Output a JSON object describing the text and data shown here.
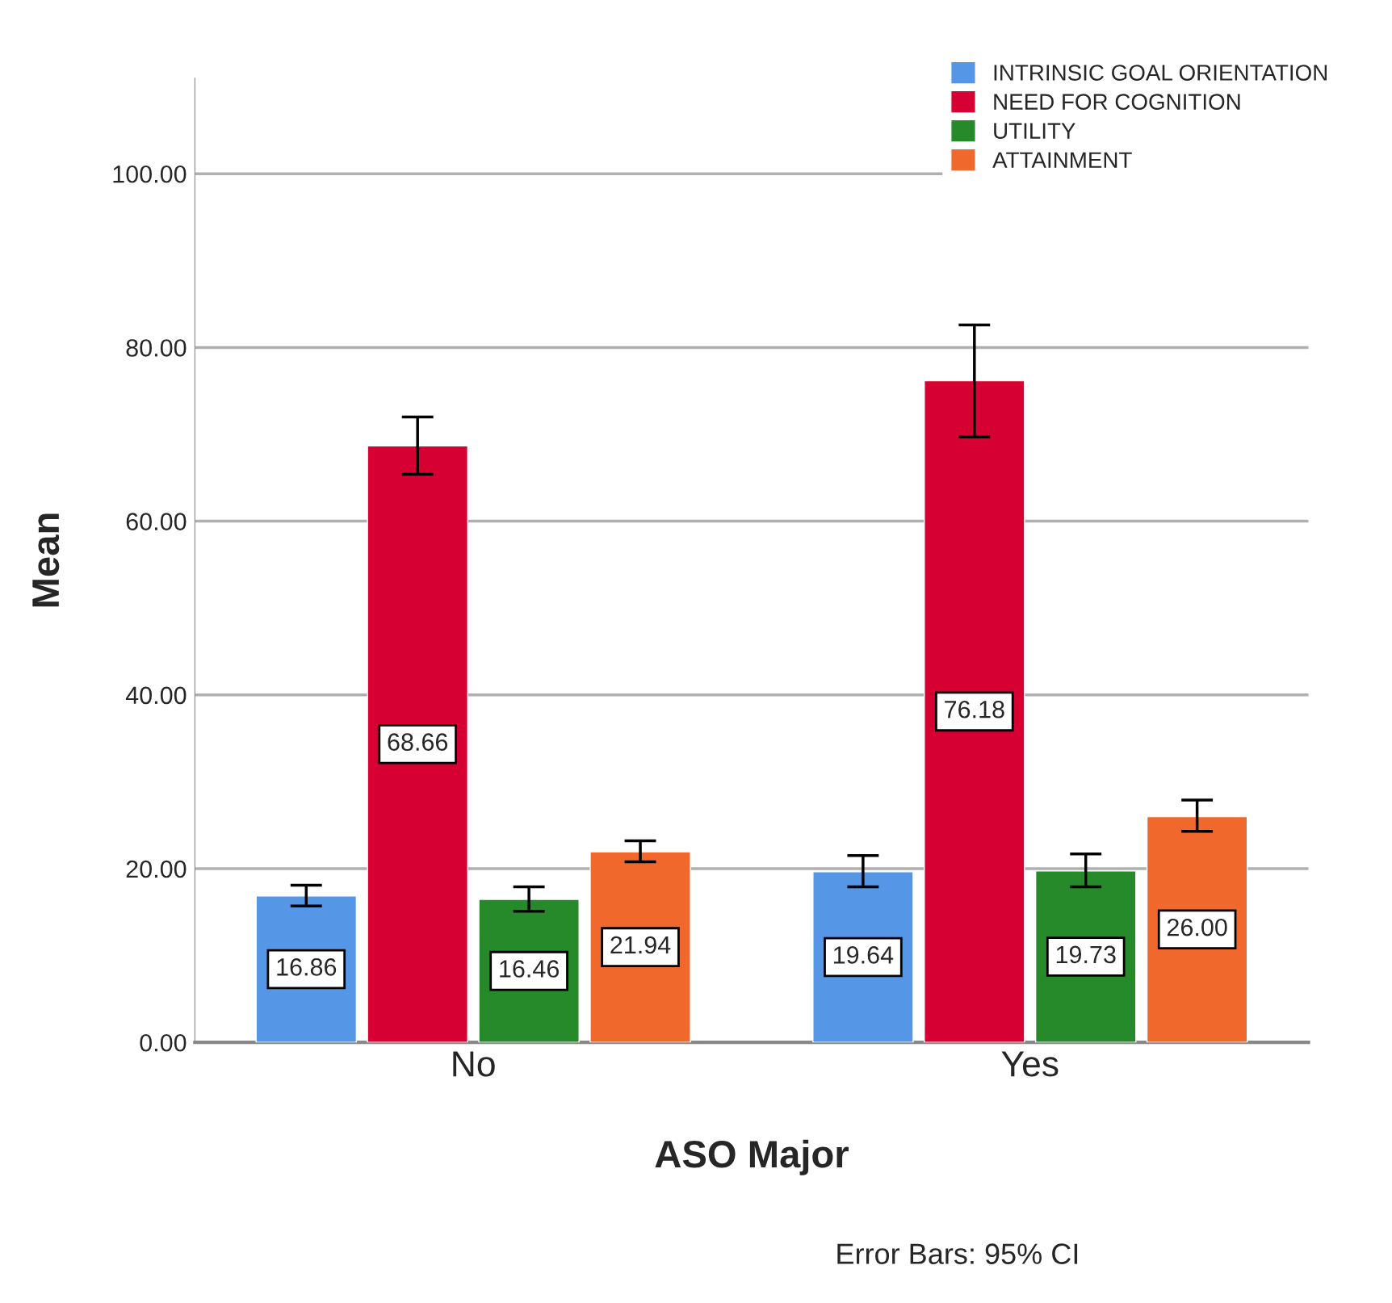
{
  "chart_data": {
    "type": "bar",
    "xlabel": "ASO Major",
    "ylabel": "Mean",
    "categories": [
      "No",
      "Yes"
    ],
    "series": [
      {
        "name": "INTRINSIC GOAL ORIENTATION",
        "color": "#5596e6",
        "values": [
          16.86,
          19.64
        ],
        "value_labels": [
          "16.86",
          "19.64"
        ],
        "errors": [
          [
            15.7,
            18.1
          ],
          [
            17.9,
            21.5
          ]
        ]
      },
      {
        "name": "NEED FOR COGNITION",
        "color": "#d60032",
        "values": [
          68.66,
          76.18
        ],
        "value_labels": [
          "68.66",
          "76.18"
        ],
        "errors": [
          [
            65.4,
            72.0
          ],
          [
            69.7,
            82.6
          ]
        ]
      },
      {
        "name": "UTILITY",
        "color": "#278a2a",
        "values": [
          16.46,
          19.73
        ],
        "value_labels": [
          "16.46",
          "19.73"
        ],
        "errors": [
          [
            15.1,
            17.9
          ],
          [
            17.9,
            21.7
          ]
        ]
      },
      {
        "name": "ATTAINMENT",
        "color": "#f0682c",
        "values": [
          21.94,
          26.0
        ],
        "value_labels": [
          "21.94",
          "26.00"
        ],
        "errors": [
          [
            20.8,
            23.2
          ],
          [
            24.3,
            27.9
          ]
        ]
      }
    ],
    "ylim": [
      0,
      111
    ],
    "yticks": [
      {
        "value": 0,
        "label": "0.00"
      },
      {
        "value": 20,
        "label": "20.00"
      },
      {
        "value": 40,
        "label": "40.00"
      },
      {
        "value": 60,
        "label": "60.00"
      },
      {
        "value": 80,
        "label": "80.00"
      },
      {
        "value": 100,
        "label": "100.00"
      }
    ],
    "grid": "y",
    "legend": "top right",
    "annotations": [
      "Error Bars: 95% CI"
    ]
  }
}
